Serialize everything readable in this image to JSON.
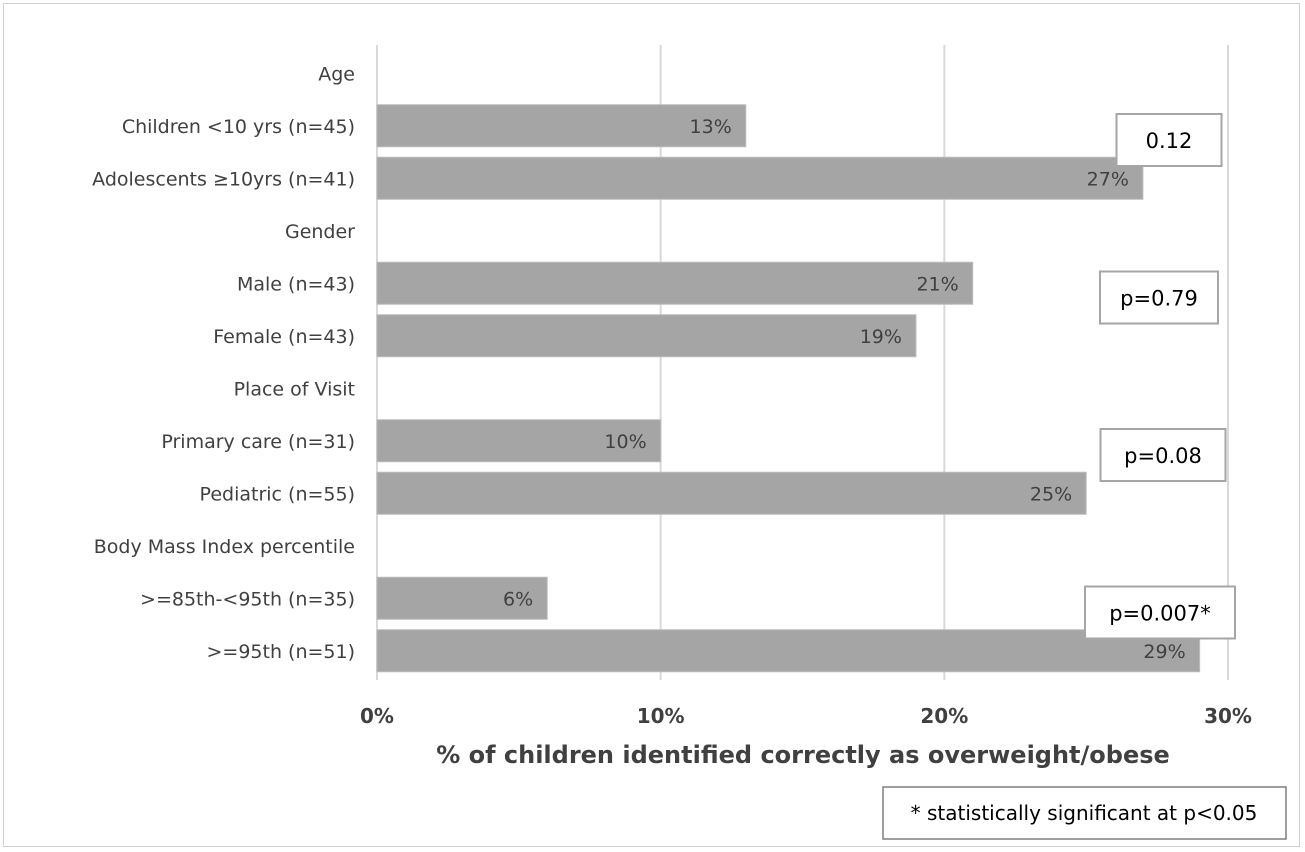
{
  "chart_data": {
    "type": "bar",
    "orientation": "horizontal",
    "categories": [
      "Age",
      "Children <10 yrs (n=45)",
      "Adolescents  ≥10yrs (n=41)",
      "Gender",
      "Male (n=43)",
      "Female (n=43)",
      "Place of Visit",
      "Primary care (n=31)",
      "Pediatric (n=55)",
      "Body Mass Index percentile",
      ">=85th-<95th (n=35)",
      ">=95th (n=51)"
    ],
    "values": [
      null,
      13,
      27,
      null,
      21,
      19,
      null,
      10,
      25,
      null,
      6,
      29
    ],
    "data_labels": [
      "",
      "13%",
      "27%",
      "",
      "21%",
      "19%",
      "",
      "10%",
      "25%",
      "",
      "6%",
      "29%"
    ],
    "xlim": [
      0,
      30
    ],
    "xticks": [
      0,
      10,
      20,
      30
    ],
    "xtick_labels": [
      "0%",
      "10%",
      "20%",
      "30%"
    ],
    "xlabel": "% of children identified correctly as overweight/obese",
    "title": "",
    "ylabel": "",
    "grid": true,
    "bar_color": "#a5a5a5",
    "grid_color": "#d9d9d9",
    "annotations": [
      {
        "text": "0.12",
        "group": "Age"
      },
      {
        "text": "p=0.79",
        "group": "Gender"
      },
      {
        "text": "p=0.08",
        "group": "Place of Visit"
      },
      {
        "text": "p=0.007*",
        "group": "Body Mass Index percentile"
      }
    ],
    "footnote": "* statistically significant at p<0.05"
  }
}
